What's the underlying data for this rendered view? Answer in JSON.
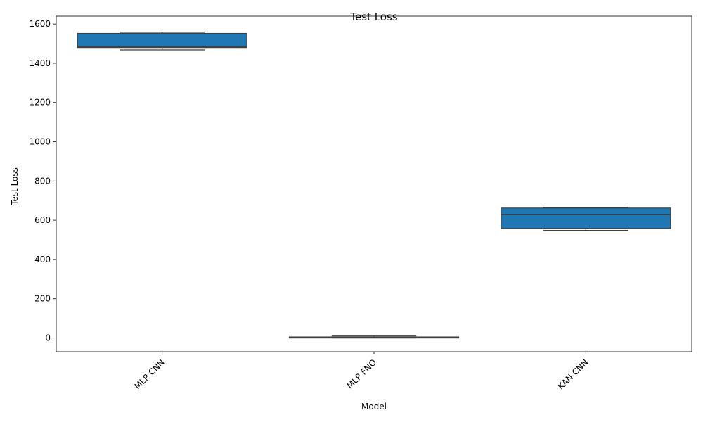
{
  "chart_data": {
    "type": "box",
    "title": "Test Loss",
    "xlabel": "Model",
    "ylabel": "Test Loss",
    "categories": [
      "MLP CNN",
      "MLP FNO",
      "KAN CNN"
    ],
    "boxes": [
      {
        "category": "MLP CNN",
        "whisker_low": 1468,
        "q1": 1480,
        "median": 1485,
        "q3": 1552,
        "whisker_high": 1558
      },
      {
        "category": "MLP FNO",
        "whisker_low": 0,
        "q1": 1,
        "median": 3,
        "q3": 5,
        "whisker_high": 10
      },
      {
        "category": "KAN CNN",
        "whisker_low": 548,
        "q1": 558,
        "median": 630,
        "q3": 662,
        "whisker_high": 665
      }
    ],
    "ylim": [
      -70,
      1640
    ],
    "yticks": [
      0,
      200,
      400,
      600,
      800,
      1000,
      1200,
      1400,
      1600
    ],
    "box_color": "#1f77b4",
    "line_color": "#3f3f3f",
    "grid": false,
    "xtick_rotation_deg": 45
  }
}
